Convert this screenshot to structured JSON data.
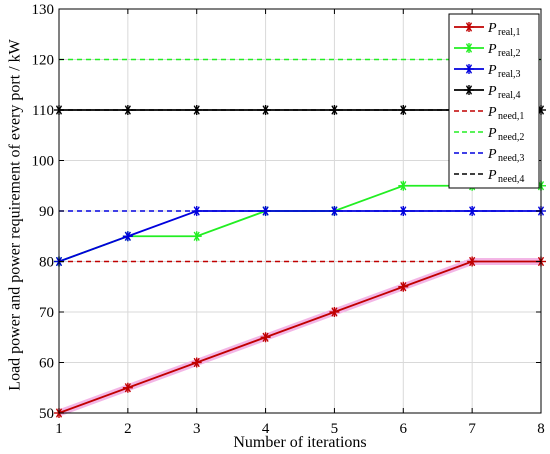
{
  "chart_data": {
    "type": "line",
    "xlabel": "Number of iterations",
    "ylabel": "Load power and power requirement of every port / kW",
    "xlim": [
      1,
      8
    ],
    "ylim": [
      50,
      130
    ],
    "xticks": [
      "1",
      "2",
      "3",
      "4",
      "5",
      "6",
      "7",
      "8"
    ],
    "yticks": [
      "50",
      "60",
      "70",
      "80",
      "90",
      "100",
      "110",
      "120",
      "130"
    ],
    "grid": true,
    "legend_position": "top-right",
    "x": [
      1,
      2,
      3,
      4,
      5,
      6,
      7,
      8
    ],
    "series": [
      {
        "name": "P",
        "sub": "real,1",
        "style": "solid-star",
        "color": "#c00000",
        "values": [
          50,
          55,
          60,
          65,
          70,
          75,
          80,
          80
        ]
      },
      {
        "name": "P",
        "sub": "real,2",
        "style": "solid-star",
        "color": "#22ee22",
        "values": [
          80,
          85,
          85,
          90,
          90,
          95,
          95,
          95
        ]
      },
      {
        "name": "P",
        "sub": "real,3",
        "style": "solid-star",
        "color": "#0000dd",
        "values": [
          80,
          85,
          90,
          90,
          90,
          90,
          90,
          90
        ]
      },
      {
        "name": "P",
        "sub": "real,4",
        "style": "solid-star",
        "color": "#000000",
        "values": [
          110,
          110,
          110,
          110,
          110,
          110,
          110,
          110
        ]
      },
      {
        "name": "P",
        "sub": "need,1",
        "style": "dashed",
        "color": "#c00000",
        "values": [
          80,
          80,
          80,
          80,
          80,
          80,
          80,
          80
        ]
      },
      {
        "name": "P",
        "sub": "need,2",
        "style": "dashed",
        "color": "#22ee22",
        "values": [
          120,
          120,
          120,
          120,
          120,
          120,
          120,
          120
        ]
      },
      {
        "name": "P",
        "sub": "need,3",
        "style": "dashed",
        "color": "#0000dd",
        "values": [
          90,
          90,
          90,
          90,
          90,
          90,
          90,
          90
        ]
      },
      {
        "name": "P",
        "sub": "need,4",
        "style": "dashed",
        "color": "#000000",
        "values": [
          110,
          110,
          110,
          110,
          110,
          110,
          110,
          110
        ]
      }
    ]
  }
}
